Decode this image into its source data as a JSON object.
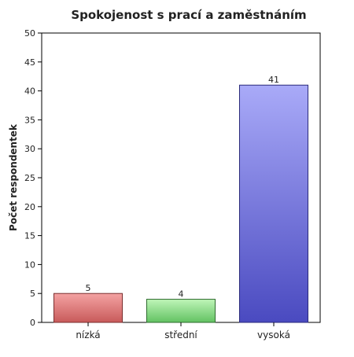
{
  "chart_data": {
    "type": "bar",
    "title": "Spokojenost s prací a zaměstnáním",
    "xlabel": "",
    "ylabel": "Počet respondentek",
    "categories": [
      "nízká",
      "střední",
      "vysoká"
    ],
    "values": [
      5,
      4,
      41
    ],
    "data_labels": [
      "5",
      "4",
      "41"
    ],
    "ylim": [
      0,
      50
    ],
    "yticks": [
      "0",
      "5",
      "10",
      "15",
      "20",
      "25",
      "30",
      "35",
      "40",
      "45",
      "50"
    ],
    "grid": false,
    "legend": "none",
    "colors": [
      {
        "top": "#f4a3a3",
        "bottom": "#c85a5a",
        "stroke": "#7a2e2e"
      },
      {
        "top": "#bff5b8",
        "bottom": "#62c262",
        "stroke": "#2e6b2e"
      },
      {
        "top": "#a9aaf8",
        "bottom": "#4a4ac0",
        "stroke": "#2a2a7a"
      }
    ]
  }
}
